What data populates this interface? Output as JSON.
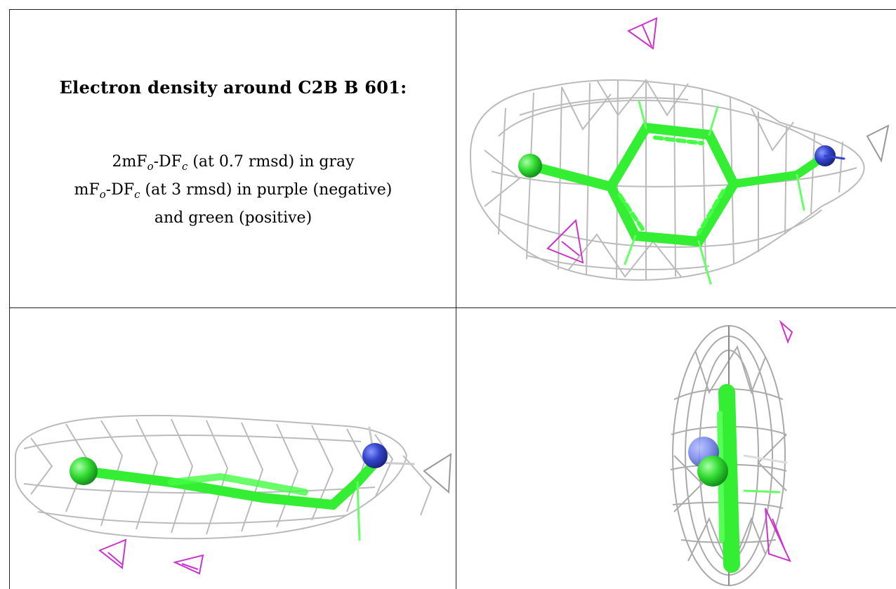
{
  "caption": {
    "title": "Electron density around C2B B 601:",
    "line1": {
      "pre": "2mF",
      "sub1": "o",
      "mid": "-DF",
      "sub2": "c",
      "post": " (at 0.7 rmsd) in gray"
    },
    "line2": {
      "pre": "mF",
      "sub1": "o",
      "mid": "-DF",
      "sub2": "c",
      "post": " (at 3 rmsd) in purple (negative)"
    },
    "line3": "and green (positive)"
  },
  "colors": {
    "mesh_2fofc": "#b8b8b8",
    "mesh_fofc_negative": "#cc33cc",
    "mesh_fofc_positive": "#33cc33",
    "carbon": "#33ee33",
    "nitrogen": "#3344cc"
  },
  "panels": [
    "top-right-view",
    "bottom-left-view",
    "bottom-right-view"
  ]
}
